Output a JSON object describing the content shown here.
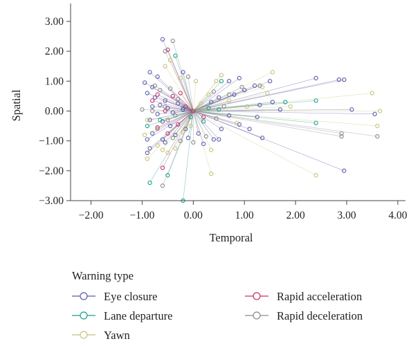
{
  "chart_data": {
    "type": "scatter",
    "subtype": "starfield",
    "title": "",
    "xlabel": "Temporal",
    "ylabel": "Spatial",
    "xlim": [
      -2.4,
      4.15
    ],
    "ylim": [
      -3.0,
      3.6
    ],
    "origin": [
      0.0,
      0.0
    ],
    "grid": false,
    "x_ticks": [
      -2,
      -1,
      0,
      1,
      2,
      3,
      4
    ],
    "x_tick_labels": [
      "−2.00",
      "−1.00",
      "0.00",
      "1.00",
      "2.00",
      "3.00",
      "4.00"
    ],
    "y_ticks": [
      -3,
      -2,
      -1,
      0,
      1,
      2,
      3
    ],
    "y_tick_labels": [
      "−3.00",
      "−2.00",
      "−1.00",
      "0.00",
      "1.00",
      "2.00",
      "3.00"
    ],
    "legend": {
      "title": "Warning type",
      "placement": "bottom-left",
      "columns": 2
    },
    "series": [
      {
        "name": "Eye closure",
        "color": "#5b5ba8",
        "points": [
          [
            -0.6,
            2.4
          ],
          [
            -0.85,
            1.3
          ],
          [
            -0.7,
            1.15
          ],
          [
            -0.95,
            0.95
          ],
          [
            -0.8,
            0.8
          ],
          [
            -0.9,
            0.6
          ],
          [
            -0.75,
            0.45
          ],
          [
            -0.55,
            0.35
          ],
          [
            -0.65,
            0.2
          ],
          [
            -0.8,
            0.15
          ],
          [
            -0.5,
            0.1
          ],
          [
            -0.3,
            0.25
          ],
          [
            -0.2,
            0.05
          ],
          [
            -0.4,
            -0.05
          ],
          [
            -0.7,
            -0.1
          ],
          [
            -0.85,
            -0.3
          ],
          [
            -0.6,
            -0.35
          ],
          [
            -0.45,
            -0.5
          ],
          [
            -0.8,
            -0.75
          ],
          [
            -0.9,
            -0.95
          ],
          [
            -0.6,
            -0.95
          ],
          [
            -0.85,
            -1.25
          ],
          [
            -0.9,
            -1.4
          ],
          [
            -0.55,
            -1.05
          ],
          [
            -0.35,
            -0.8
          ],
          [
            -0.15,
            -0.6
          ],
          [
            -0.1,
            -0.9
          ],
          [
            0.1,
            -0.75
          ],
          [
            0.4,
            -0.95
          ],
          [
            0.5,
            -0.95
          ],
          [
            0.2,
            -1.1
          ],
          [
            0.35,
            0.3
          ],
          [
            0.5,
            0.45
          ],
          [
            0.8,
            0.55
          ],
          [
            1.0,
            0.7
          ],
          [
            1.2,
            0.85
          ],
          [
            1.5,
            1.0
          ],
          [
            0.9,
            1.1
          ],
          [
            0.7,
            1.0
          ],
          [
            1.3,
            0.2
          ],
          [
            1.55,
            0.3
          ],
          [
            1.25,
            -0.2
          ],
          [
            0.9,
            -0.45
          ],
          [
            0.7,
            -0.15
          ],
          [
            1.1,
            -0.6
          ],
          [
            1.35,
            -0.9
          ],
          [
            0.55,
            -0.6
          ],
          [
            2.4,
            1.1
          ],
          [
            2.85,
            1.05
          ],
          [
            2.95,
            1.05
          ],
          [
            3.1,
            0.05
          ],
          [
            3.55,
            -0.1
          ],
          [
            2.95,
            -2.0
          ],
          [
            1.7,
            0.05
          ],
          [
            -0.2,
            1.3
          ]
        ]
      },
      {
        "name": "Lane departure",
        "color": "#1a9e8f",
        "points": [
          [
            -0.35,
            1.85
          ],
          [
            -0.85,
            -2.4
          ],
          [
            -0.5,
            -2.15
          ],
          [
            -0.65,
            -0.3
          ],
          [
            -0.2,
            0.1
          ],
          [
            -0.05,
            -0.2
          ],
          [
            0.2,
            -0.35
          ],
          [
            0.3,
            0.1
          ],
          [
            0.5,
            0.05
          ],
          [
            1.8,
            0.3
          ],
          [
            2.4,
            0.35
          ],
          [
            2.4,
            -0.4
          ],
          [
            -0.2,
            -3.0
          ],
          [
            0.55,
            1.0
          ],
          [
            -0.9,
            -0.5
          ]
        ]
      },
      {
        "name": "Yawn",
        "color": "#c8c27a",
        "points": [
          [
            -0.45,
            1.7
          ],
          [
            -0.55,
            1.5
          ],
          [
            -0.9,
            -0.3
          ],
          [
            -0.95,
            -0.8
          ],
          [
            -0.9,
            -1.6
          ],
          [
            -0.7,
            -1.15
          ],
          [
            -0.6,
            -1.3
          ],
          [
            -0.5,
            -1.4
          ],
          [
            -0.35,
            -1.25
          ],
          [
            -0.2,
            -0.7
          ],
          [
            -0.05,
            -0.5
          ],
          [
            0.15,
            0.25
          ],
          [
            0.3,
            0.55
          ],
          [
            0.45,
            1.0
          ],
          [
            0.55,
            1.2
          ],
          [
            0.7,
            0.35
          ],
          [
            0.85,
            -0.4
          ],
          [
            1.05,
            0.15
          ],
          [
            1.45,
            0.6
          ],
          [
            1.55,
            1.3
          ],
          [
            1.35,
            0.8
          ],
          [
            1.9,
            0.15
          ],
          [
            2.4,
            -2.15
          ],
          [
            3.5,
            0.6
          ],
          [
            3.6,
            -0.5
          ],
          [
            3.65,
            0.0
          ],
          [
            0.35,
            -2.1
          ],
          [
            0.35,
            -1.3
          ],
          [
            0.05,
            1.0
          ],
          [
            -0.25,
            1.1
          ]
        ]
      },
      {
        "name": "Rapid acceleration",
        "color": "#c4326b",
        "points": [
          [
            -0.5,
            2.05
          ],
          [
            -0.7,
            0.55
          ],
          [
            -0.8,
            0.35
          ],
          [
            -0.55,
            0.0
          ],
          [
            -0.7,
            -0.55
          ],
          [
            -0.5,
            -0.75
          ],
          [
            -0.3,
            -0.45
          ],
          [
            -0.15,
            0.15
          ],
          [
            0.0,
            0.0
          ],
          [
            0.2,
            -0.2
          ],
          [
            -0.4,
            0.5
          ],
          [
            -0.6,
            -1.9
          ],
          [
            -0.25,
            0.6
          ]
        ]
      },
      {
        "name": "Rapid deceleration",
        "color": "#8a8a8a",
        "points": [
          [
            -0.4,
            2.35
          ],
          [
            -0.55,
            2.0
          ],
          [
            -0.75,
            0.85
          ],
          [
            -0.65,
            0.7
          ],
          [
            -0.45,
            0.75
          ],
          [
            -0.3,
            0.4
          ],
          [
            -0.55,
            0.15
          ],
          [
            -0.8,
            0.0
          ],
          [
            -1.0,
            0.05
          ],
          [
            -0.35,
            -0.15
          ],
          [
            -0.5,
            -0.3
          ],
          [
            -0.7,
            -0.6
          ],
          [
            -0.4,
            -0.9
          ],
          [
            -0.25,
            -1.0
          ],
          [
            0.0,
            -1.05
          ],
          [
            0.25,
            -0.85
          ],
          [
            0.45,
            -0.25
          ],
          [
            0.6,
            0.15
          ],
          [
            0.7,
            0.55
          ],
          [
            0.95,
            0.8
          ],
          [
            1.3,
            0.85
          ],
          [
            2.9,
            -0.75
          ],
          [
            2.9,
            -0.85
          ],
          [
            3.6,
            -0.85
          ],
          [
            -0.6,
            -2.5
          ],
          [
            -0.1,
            1.15
          ],
          [
            0.4,
            0.65
          ]
        ]
      }
    ]
  }
}
